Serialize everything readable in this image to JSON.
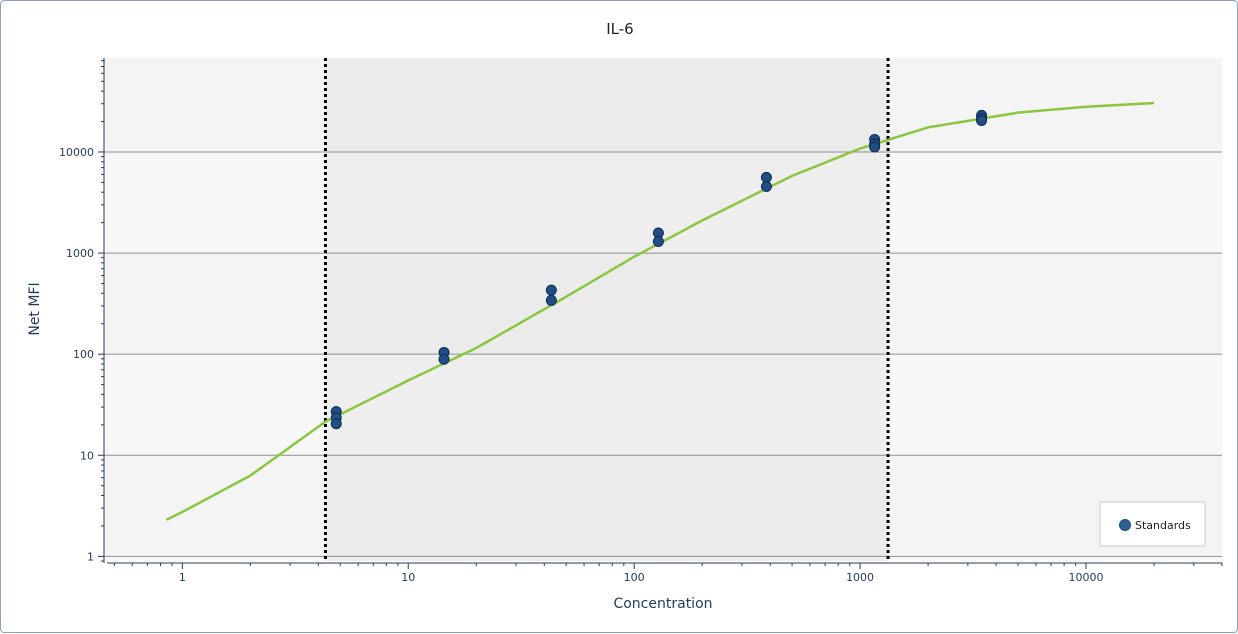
{
  "chart_data": {
    "type": "scatter",
    "title": "IL-6",
    "xlabel": "Concentration",
    "ylabel": "Net MFI",
    "x_scale": "log",
    "y_scale": "log",
    "xlim": [
      0.45,
      40000
    ],
    "ylim": [
      0.9,
      85000
    ],
    "x_ticks": [
      1,
      10,
      100,
      1000,
      10000
    ],
    "x_tick_labels": [
      "1",
      "10",
      "100",
      "1000",
      "10000"
    ],
    "y_ticks": [
      1,
      10,
      100,
      1000,
      10000
    ],
    "y_tick_labels": [
      "1",
      "10",
      "100",
      "1000",
      "10000"
    ],
    "grid": "horizontal",
    "legend": {
      "position": "bottom-right",
      "entries": [
        "Standards"
      ]
    },
    "series": [
      {
        "name": "Standards",
        "kind": "points",
        "color": "#1f4e86",
        "x": [
          4.8,
          4.8,
          4.8,
          14.4,
          14.4,
          43,
          43,
          128,
          128,
          385,
          385,
          1160,
          1160,
          1160,
          3450,
          3450,
          3450
        ],
        "y": [
          27,
          23.5,
          20.5,
          104,
          89,
          430,
          340,
          1580,
          1300,
          5600,
          4550,
          13300,
          12000,
          11200,
          23000,
          21500,
          20500
        ]
      }
    ],
    "curve": {
      "color": "#8cc63f",
      "x": [
        0.85,
        1,
        2,
        4.3,
        10,
        20,
        50,
        100,
        200,
        500,
        1000,
        2000,
        5000,
        10000,
        20000
      ],
      "y": [
        2.3,
        2.75,
        6.3,
        21.5,
        55,
        115,
        370,
        920,
        2100,
        5800,
        10800,
        17500,
        24500,
        28000,
        30500
      ]
    },
    "limits": {
      "lower_x": 4.3,
      "upper_x": 1330
    }
  }
}
